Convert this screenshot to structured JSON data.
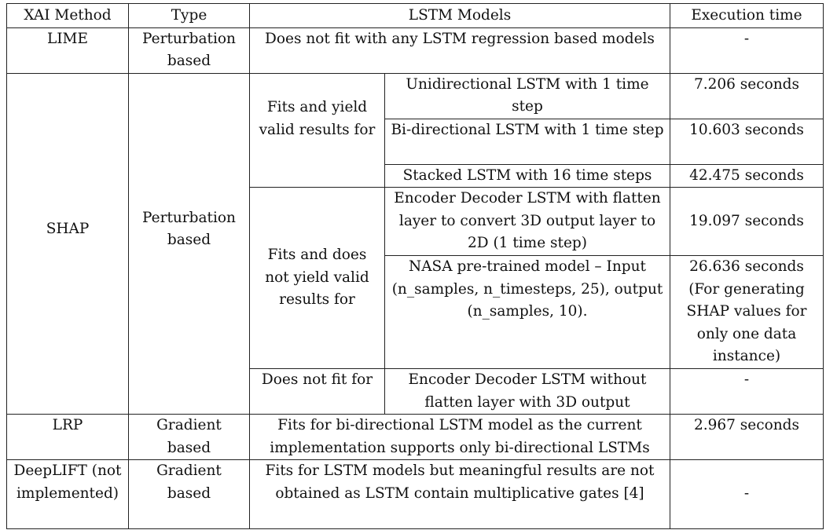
{
  "headers": {
    "method": "XAI Method",
    "type": "Type",
    "models": "LSTM Models",
    "time": "Execution time"
  },
  "lime": {
    "method": "LIME",
    "type": "Perturbation based",
    "models": "Does not fit with any LSTM regression based models",
    "time": "-"
  },
  "shap": {
    "method": "SHAP",
    "type": "Perturbation based",
    "group_valid": "Fits and yield valid results for",
    "group_invalid": "Fits and does not yield valid results for",
    "group_nofit": "Does not fit for",
    "rows": [
      {
        "model": "Unidirectional LSTM with 1 time step",
        "time": "7.206 seconds"
      },
      {
        "model": "Bi-directional LSTM with 1 time step",
        "time": "10.603 seconds"
      },
      {
        "model": "Stacked LSTM with 16 time steps",
        "time": "42.475 seconds"
      },
      {
        "model": "Encoder Decoder LSTM with flatten layer to convert 3D output layer to 2D (1 time step)",
        "time": "19.097 seconds"
      },
      {
        "model": "NASA pre-trained model – Input (n_samples, n_timesteps, 25), output (n_samples, 10).",
        "time": "26.636 seconds (For generating SHAP values for only one data instance)"
      },
      {
        "model": "Encoder Decoder LSTM without flatten layer with 3D output",
        "time": "-"
      }
    ]
  },
  "lrp": {
    "method": "LRP",
    "type": "Gradient based",
    "models": "Fits for bi-directional LSTM model as the current implementation supports only bi-directional LSTMs",
    "time": "2.967 seconds"
  },
  "deeplift": {
    "method": "DeepLIFT (not implemented)",
    "type": "Gradient based",
    "models": "Fits for LSTM models but meaningful results are not obtained as LSTM contain multiplicative gates [4]",
    "time": "-"
  }
}
